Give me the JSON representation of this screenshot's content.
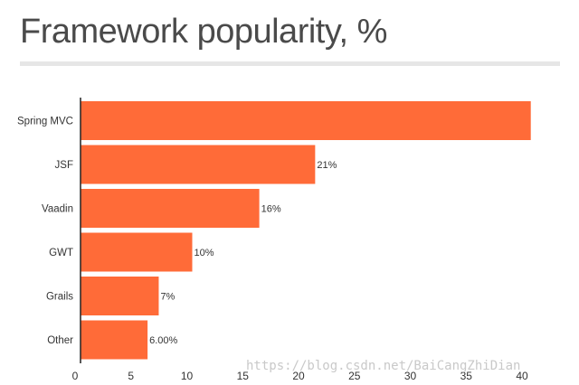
{
  "watermark": "https://blog.csdn.net/BaiCangZhiDian",
  "colors": {
    "bar": "#FF6B38",
    "axis": "#222222"
  },
  "chart_data": {
    "type": "bar",
    "orientation": "horizontal",
    "title": "Framework popularity, %",
    "categories": [
      "Spring MVC",
      "JSF",
      "Vaadin",
      "GWT",
      "Grails",
      "Other"
    ],
    "values": [
      40.3,
      21,
      16,
      10,
      7,
      6
    ],
    "data_labels": [
      "",
      "21%",
      "16%",
      "10%",
      "7%",
      "6.00%"
    ],
    "xlim": [
      0,
      42
    ],
    "xticks": [
      0,
      5,
      10,
      15,
      20,
      25,
      30,
      35,
      40
    ],
    "grid": false,
    "legend": "none"
  }
}
